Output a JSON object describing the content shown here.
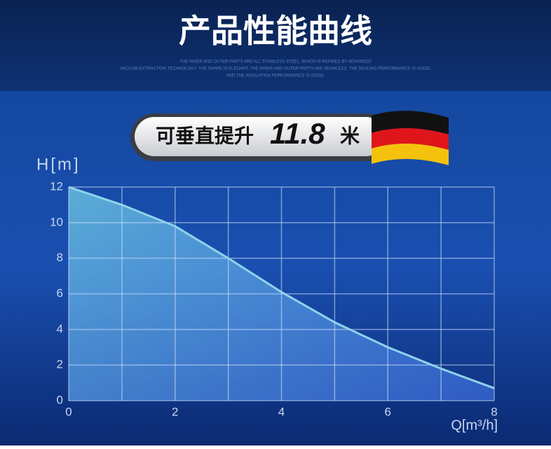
{
  "header": {
    "title": "产品性能曲线",
    "lines": [
      "THE INNER AND OUTER PARTS ARE ALL STAINLESS STEEL, WHICH IS REFINED BY ADVANCED",
      "VACUUM EXTRACTION TECHNOLOGY. THE SHAPE IS ELEGANT, THE INNER AND OUTER PARTS ARE SEAMLESS, THE SEALING PERFORMANCE IS GOOD,",
      "AND THE INSULATION PERFORMANCE IS GOOD."
    ]
  },
  "badge": {
    "text": "可垂直提升",
    "number": "11.8",
    "unit": "米"
  },
  "chart_data": {
    "type": "area",
    "y_label": "H[m]",
    "x_label": "Q[m³/h]",
    "x": [
      0,
      1,
      2,
      3,
      4,
      5,
      6,
      7,
      8
    ],
    "series": [
      {
        "values": [
          12,
          11,
          9.8,
          8,
          6.1,
          4.4,
          3,
          1.8,
          0.7
        ],
        "color": "#8fd3ec"
      }
    ],
    "xlim": [
      0,
      8
    ],
    "xticks": [
      0,
      2,
      4,
      6,
      8
    ],
    "xgrid": [
      0,
      1,
      2,
      3,
      4,
      5,
      6,
      7,
      8
    ],
    "ylim": [
      0,
      12
    ],
    "yticks": [
      0,
      2,
      4,
      6,
      8,
      10,
      12
    ],
    "grid": true
  }
}
